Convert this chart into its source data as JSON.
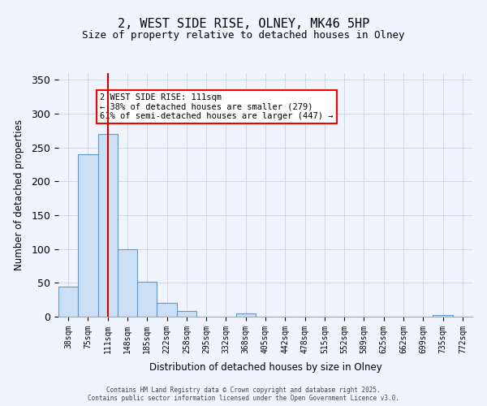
{
  "title1": "2, WEST SIDE RISE, OLNEY, MK46 5HP",
  "title2": "Size of property relative to detached houses in Olney",
  "xlabel": "Distribution of detached houses by size in Olney",
  "ylabel": "Number of detached properties",
  "bins": [
    "38sqm",
    "75sqm",
    "111sqm",
    "148sqm",
    "185sqm",
    "222sqm",
    "258sqm",
    "295sqm",
    "332sqm",
    "368sqm",
    "405sqm",
    "442sqm",
    "478sqm",
    "515sqm",
    "552sqm",
    "589sqm",
    "625sqm",
    "662sqm",
    "699sqm",
    "735sqm",
    "772sqm"
  ],
  "values": [
    45,
    240,
    270,
    100,
    52,
    20,
    8,
    0,
    0,
    5,
    0,
    0,
    0,
    0,
    0,
    0,
    0,
    0,
    0,
    2,
    0
  ],
  "bar_color": "#cce0f5",
  "bar_edge_color": "#5b9bd5",
  "red_line_index": 2,
  "annotation_text": "2 WEST SIDE RISE: 111sqm\n← 38% of detached houses are smaller (279)\n61% of semi-detached houses are larger (447) →",
  "annotation_box_color": "white",
  "annotation_box_edge_color": "red",
  "red_line_color": "#cc0000",
  "ylim": [
    0,
    360
  ],
  "yticks": [
    0,
    50,
    100,
    150,
    200,
    250,
    300,
    350
  ],
  "footer1": "Contains HM Land Registry data © Crown copyright and database right 2025.",
  "footer2": "Contains public sector information licensed under the Open Government Licence v3.0.",
  "bg_color": "#f0f4ff",
  "grid_color": "#d0d8e8"
}
